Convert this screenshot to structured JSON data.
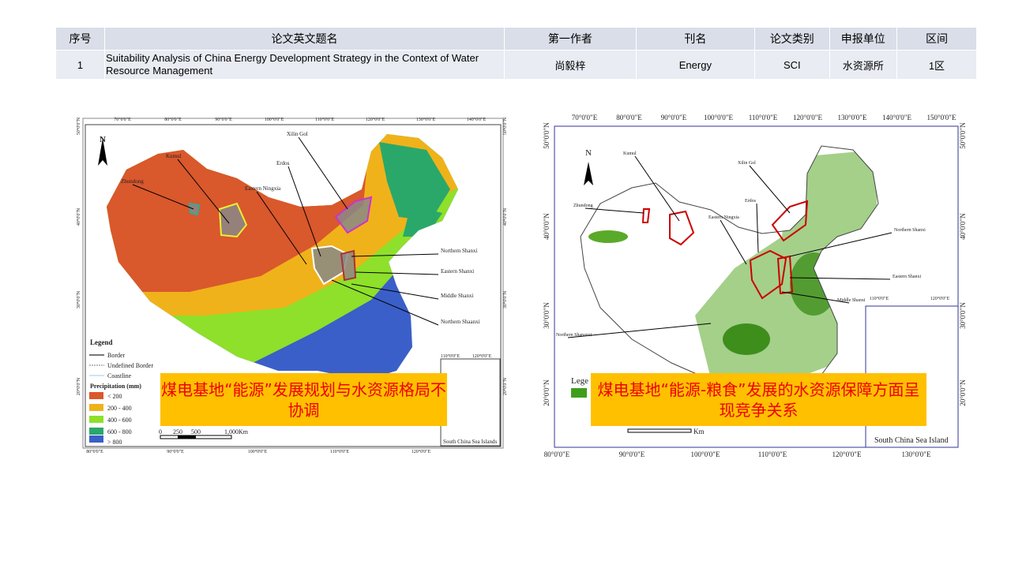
{
  "table": {
    "headers": [
      "序号",
      "论文英文题名",
      "第一作者",
      "刊名",
      "论文类别",
      "申报单位",
      "区间"
    ],
    "rows": [
      [
        "1",
        "Suitability Analysis of China Energy Development Strategy in the Context of Water Resource Management",
        "尚毅梓",
        "Energy",
        "SCI",
        "水资源所",
        "1区"
      ]
    ]
  },
  "maps": [
    {
      "lon_top": [
        "70°0'0\"E",
        "80°0'0\"E",
        "90°0'0\"E",
        "100°0'0\"E",
        "110°0'0\"E",
        "120°0'0\"E",
        "130°0'0\"E",
        "140°0'0\"E"
      ],
      "lon_bottom": [
        "80°0'0\"E",
        "90°0'0\"E",
        "100°0'0\"E",
        "110°0'0\"E",
        "120°0'0\"E"
      ],
      "lat": [
        "50°0'0\"N",
        "40°0'0\"N",
        "30°0'0\"N",
        "20°0'0\"N"
      ],
      "inset_lon": [
        "110°0'0\"E",
        "120°0'0\"E"
      ],
      "places": [
        "Xilin Gol",
        "Kumul",
        "Erdos",
        "Zhundong",
        "Eastern Ningxia",
        "Northern Shanxi",
        "Eastern Shanxi",
        "Middle Shanxi",
        "Northern Shaanxi"
      ],
      "north": "N",
      "legend": {
        "title": "Legend",
        "items": [
          "Border",
          "Undefined Border",
          "Coastline"
        ],
        "sub": "Precipitation (mm)",
        "classes": [
          "< 200",
          "200 - 400",
          "400 - 600",
          "600 - 800",
          "> 800"
        ]
      },
      "scale": [
        "0",
        "250",
        "500",
        "1,000",
        "Km"
      ],
      "inset": "South China Sea Islands",
      "caption": "煤电基地“能源”发展规划与水资源格局不协调"
    },
    {
      "lon_top": [
        "70°0'0\"E",
        "80°0'0\"E",
        "90°0'0\"E",
        "100°0'0\"E",
        "110°0'0\"E",
        "120°0'0\"E",
        "130°0'0\"E",
        "140°0'0\"E",
        "150°0'0\"E"
      ],
      "lon_bottom": [
        "80°0'0\"E",
        "90°0'0\"E",
        "100°0'0\"E",
        "110°0'0\"E",
        "120°0'0\"E",
        "130°0'0\"E"
      ],
      "lat": [
        "50°0'0\"N",
        "40°0'0\"N",
        "30°0'0\"N",
        "20°0'0\"N"
      ],
      "inset_lon": [
        "110°0'0\"E",
        "120°0'0\"E"
      ],
      "places": [
        "Kumul",
        "Xilin Gol",
        "Zhundong",
        "Erdos",
        "Eastern Ningxia",
        "Northern Shanxi",
        "Eastern Shanxi",
        "Middle Shanxi",
        "Northern Shananxi"
      ],
      "north": "N",
      "legend_title": "Lege",
      "scale": [
        "Km"
      ],
      "inset": "South China Sea Island",
      "caption": "煤电基地“能源-粮食”发展的水资源保障方面呈现竞争关系"
    }
  ]
}
